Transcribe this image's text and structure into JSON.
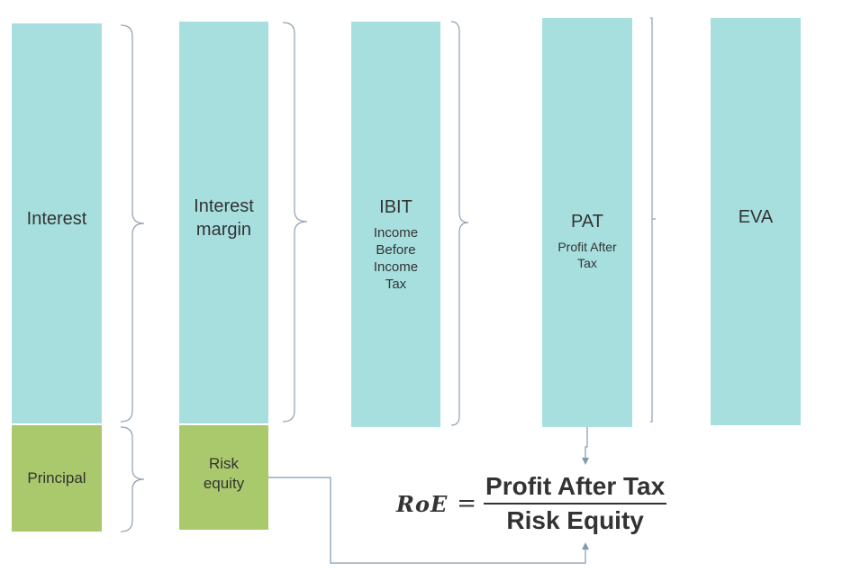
{
  "blocks": {
    "interest": "Interest",
    "principal": "Principal",
    "interest_margin": "Interest margin",
    "risk_equity": "Risk equity",
    "ibit": {
      "title": "IBIT",
      "subtitle": "Income Before Income Tax"
    },
    "pat": {
      "title": "PAT",
      "subtitle": "Profit After Tax"
    },
    "eva": "EVA"
  },
  "formula": {
    "lhs": "RoE",
    "equals": "=",
    "numerator": "Profit After Tax",
    "denominator": "Risk Equity"
  },
  "colors": {
    "teal": "#a7dfdf",
    "green": "#a9c96c",
    "bracket": "#8fa1b3",
    "arrow": "#7f9bb0",
    "text": "#333333"
  }
}
